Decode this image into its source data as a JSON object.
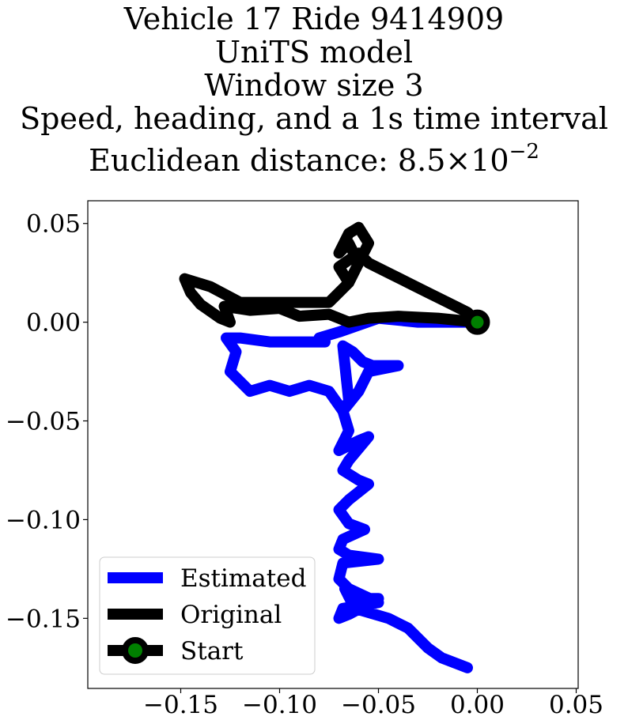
{
  "title": {
    "line1": "Vehicle 17 Ride 9414909",
    "line2": "UniTS model",
    "line3": "Window size 3",
    "line4": "Speed, heading, and a 1s time interval",
    "line5_prefix": "Euclidean distance: 8.5",
    "line5_times": "×",
    "line5_base": "10",
    "line5_exp": "−2"
  },
  "chart_data": {
    "type": "line",
    "title": "Vehicle 17 Ride 9414909 / UniTS model / Window size 3 / Speed, heading, and a 1s time interval / Euclidean distance: 8.5×10^-2",
    "xlabel": "",
    "ylabel": "",
    "xlim": [
      -0.197,
      0.051
    ],
    "ylim": [
      -0.1855,
      0.0615
    ],
    "xticks": [
      -0.15,
      -0.1,
      -0.05,
      0.0,
      0.05
    ],
    "xtick_labels": [
      "−0.15",
      "−0.10",
      "−0.05",
      "0.00",
      "0.05"
    ],
    "yticks": [
      0.05,
      0.0,
      -0.05,
      -0.1,
      -0.15
    ],
    "ytick_labels": [
      "0.05",
      "0.00",
      "−0.05",
      "−0.10",
      "−0.15"
    ],
    "grid": false,
    "legend_position": "lower-left",
    "series": [
      {
        "name": "Estimated",
        "color": "#0000ff",
        "x": [
          0.0,
          -0.01,
          -0.03,
          -0.05,
          -0.07,
          -0.08,
          -0.077,
          -0.09,
          -0.105,
          -0.12,
          -0.127,
          -0.122,
          -0.125,
          -0.12,
          -0.115,
          -0.105,
          -0.095,
          -0.085,
          -0.075,
          -0.068,
          -0.065,
          -0.068,
          -0.063,
          -0.058,
          -0.053,
          -0.048,
          -0.04,
          -0.055,
          -0.06,
          -0.068,
          -0.065,
          -0.07,
          -0.06,
          -0.055,
          -0.065,
          -0.068,
          -0.06,
          -0.055,
          -0.065,
          -0.07,
          -0.065,
          -0.057,
          -0.068,
          -0.07,
          -0.065,
          -0.05,
          -0.068,
          -0.07,
          -0.065,
          -0.05,
          -0.068,
          -0.07,
          -0.065,
          -0.05,
          -0.06,
          -0.067,
          -0.062,
          -0.045,
          -0.035,
          -0.025,
          -0.018,
          -0.005
        ],
        "y": [
          0.0,
          0.0,
          0.0,
          0.002,
          -0.005,
          -0.008,
          -0.01,
          -0.01,
          -0.01,
          -0.008,
          -0.008,
          -0.015,
          -0.025,
          -0.03,
          -0.035,
          -0.032,
          -0.035,
          -0.032,
          -0.035,
          -0.045,
          -0.04,
          -0.012,
          -0.015,
          -0.02,
          -0.022,
          -0.022,
          -0.022,
          -0.025,
          -0.035,
          -0.045,
          -0.055,
          -0.065,
          -0.06,
          -0.058,
          -0.07,
          -0.075,
          -0.08,
          -0.082,
          -0.09,
          -0.095,
          -0.102,
          -0.105,
          -0.11,
          -0.115,
          -0.118,
          -0.12,
          -0.122,
          -0.13,
          -0.135,
          -0.142,
          -0.145,
          -0.15,
          -0.148,
          -0.14,
          -0.14,
          -0.135,
          -0.145,
          -0.15,
          -0.155,
          -0.165,
          -0.17,
          -0.175
        ]
      },
      {
        "name": "Original",
        "color": "#000000",
        "x": [
          0.0,
          -0.02,
          -0.04,
          -0.055,
          -0.065,
          -0.075,
          -0.09,
          -0.1,
          -0.115,
          -0.128,
          -0.125,
          -0.13,
          -0.14,
          -0.145,
          -0.148,
          -0.135,
          -0.12,
          -0.11,
          -0.1,
          -0.09,
          -0.085,
          -0.075,
          -0.065,
          -0.06,
          -0.065,
          -0.07,
          -0.065,
          -0.06,
          -0.055,
          -0.06,
          -0.065,
          -0.07,
          -0.06,
          -0.055,
          -0.045,
          -0.035,
          -0.025,
          -0.015,
          -0.005,
          0.0
        ],
        "y": [
          0.0,
          0.002,
          0.003,
          0.002,
          0.0,
          0.004,
          0.003,
          0.007,
          0.006,
          0.008,
          0.0,
          0.002,
          0.009,
          0.015,
          0.022,
          0.018,
          0.01,
          0.01,
          0.01,
          0.01,
          0.01,
          0.01,
          0.02,
          0.03,
          0.04,
          0.035,
          0.045,
          0.048,
          0.04,
          0.03,
          0.02,
          0.028,
          0.035,
          0.03,
          0.025,
          0.02,
          0.015,
          0.01,
          0.005,
          0.0
        ]
      },
      {
        "name": "Start",
        "color": "#000000",
        "marker_face": "#008000",
        "x": [
          0.0
        ],
        "y": [
          0.0
        ]
      }
    ]
  }
}
